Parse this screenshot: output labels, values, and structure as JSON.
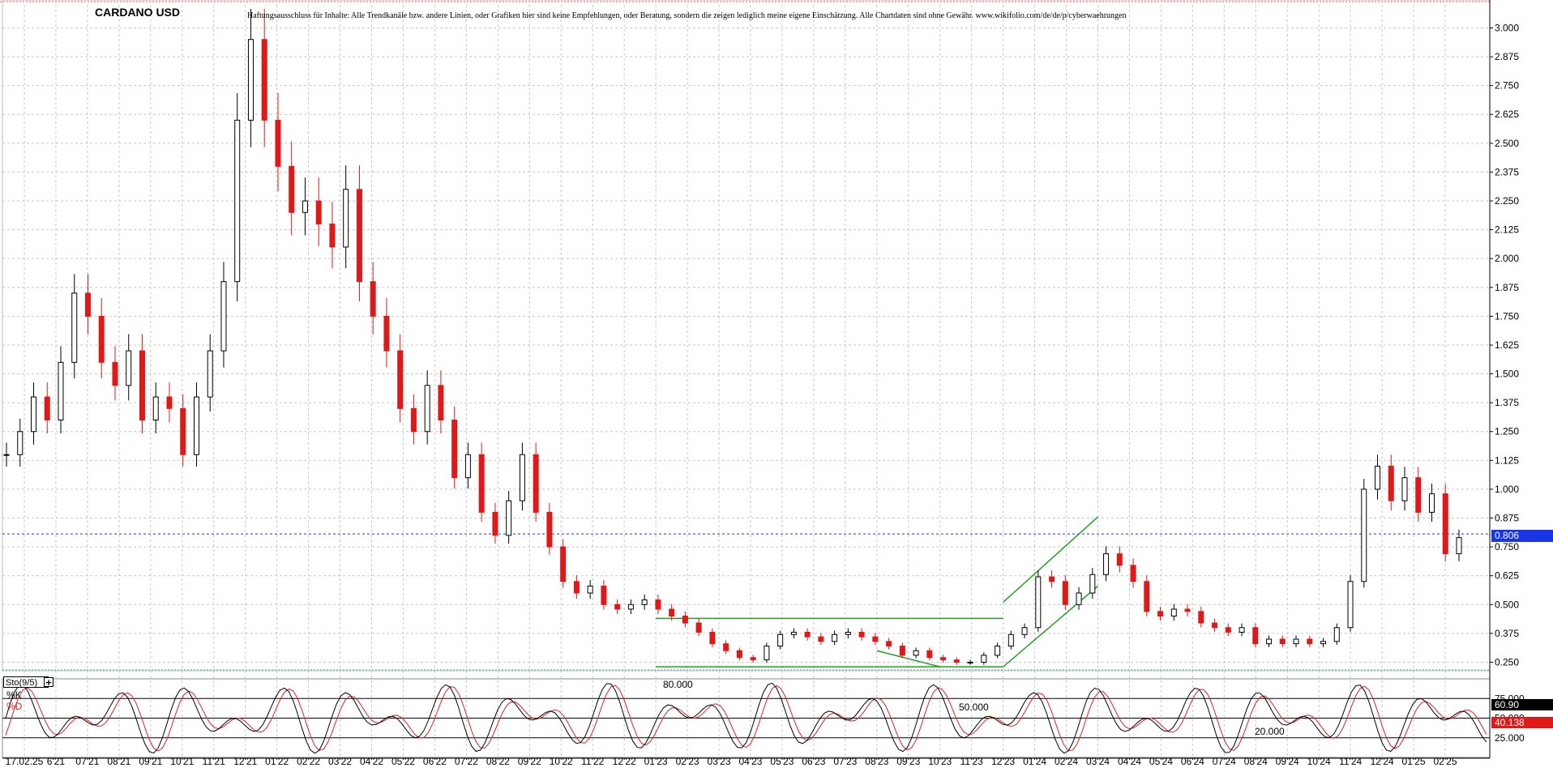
{
  "chart_data": [
    {
      "type": "candlestick",
      "title": "CARDANO USD",
      "disclaimer": "Haftungsausschluss für Inhalte: Alle Trendkanäle bzw. andere Linien, oder Grafiken hier sind keine Empfehlungen, oder Beratung, sondern die zeigen lediglich meine eigene Einschätzung. Alle Chartdaten sind ohne Gewähr. www.wikifolio.com/de/de/p/cyberwaehrungen",
      "ylim": [
        0.22,
        3.1
      ],
      "yticks": [
        "3.000",
        "2.875",
        "2.750",
        "2.625",
        "2.500",
        "2.375",
        "2.250",
        "2.125",
        "2.000",
        "1.875",
        "1.750",
        "1.625",
        "1.500",
        "1.375",
        "1.250",
        "1.125",
        "1.000",
        "0.875",
        "0.750",
        "0.625",
        "0.500",
        "0.375",
        "0.250"
      ],
      "xticks": [
        "17.02.25",
        "6'21",
        "07'21",
        "08'21",
        "09'21",
        "10'21",
        "11'21",
        "12'21",
        "01'22",
        "02'22",
        "03'22",
        "04'22",
        "05'22",
        "06'22",
        "07'22",
        "08'22",
        "09'22",
        "10'22",
        "11'22",
        "12'22",
        "01'23",
        "02'23",
        "03'23",
        "04'23",
        "05'23",
        "06'23",
        "07'23",
        "08'23",
        "09'23",
        "10'23",
        "11'23",
        "12'23",
        "01'24",
        "02'24",
        "03'24",
        "04'24",
        "05'24",
        "06'24",
        "07'24",
        "08'24",
        "09'24",
        "10'24",
        "11'24",
        "12'24",
        "01'25",
        "02'25"
      ],
      "grid": true,
      "series": [
        {
          "values": [
            1.15,
            1.25,
            1.4,
            1.3,
            1.55,
            1.85,
            1.75,
            1.55,
            1.45,
            1.6,
            1.3,
            1.4,
            1.35,
            1.15,
            1.4,
            1.6,
            1.9,
            2.6,
            2.95,
            2.6,
            2.4,
            2.2,
            2.25,
            2.15,
            2.05,
            2.3,
            1.9,
            1.75,
            1.6,
            1.35,
            1.25,
            1.45,
            1.3,
            1.05,
            1.15,
            0.9,
            0.8,
            0.95,
            1.15,
            0.9,
            0.75,
            0.6,
            0.55,
            0.58,
            0.5,
            0.48,
            0.5,
            0.52,
            0.48,
            0.45,
            0.42,
            0.38,
            0.33,
            0.3,
            0.27,
            0.26,
            0.32,
            0.37,
            0.38,
            0.36,
            0.34,
            0.37,
            0.38,
            0.36,
            0.34,
            0.32,
            0.28,
            0.3,
            0.27,
            0.26,
            0.25,
            0.25,
            0.28,
            0.32,
            0.37,
            0.4,
            0.62,
            0.6,
            0.5,
            0.55,
            0.63,
            0.72,
            0.67,
            0.6,
            0.47,
            0.45,
            0.48,
            0.47,
            0.42,
            0.4,
            0.38,
            0.4,
            0.33,
            0.35,
            0.33,
            0.35,
            0.33,
            0.34,
            0.4,
            0.6,
            1.0,
            1.1,
            0.95,
            1.05,
            0.9,
            0.98,
            0.72,
            0.79
          ]
        }
      ],
      "reference_line": {
        "value": 0.806,
        "label": "0.806",
        "color": "#1a35e6"
      },
      "annotations": [
        "80.000",
        "50.000",
        "20.000"
      ],
      "trendlines": [
        {
          "type": "horizontal-channel",
          "color": "#22a022",
          "from": "01'23",
          "to": "12'23",
          "upper": 0.44,
          "lower": 0.23
        },
        {
          "type": "rising-channel",
          "color": "#22a022",
          "from": "12'23",
          "to": "03'24",
          "upper": [
            0.51,
            0.88
          ],
          "lower": [
            0.23,
            0.58
          ]
        },
        {
          "type": "falling-line",
          "color": "#22a022",
          "from": "08'23",
          "to": "10'23",
          "values": [
            0.3,
            0.23
          ]
        }
      ]
    },
    {
      "type": "line",
      "title": "Sto(9/5)",
      "ylim": [
        0,
        100
      ],
      "yticks": [
        "75.000",
        "50.000",
        "25.000"
      ],
      "series": [
        {
          "name": "%K",
          "color": "#000000",
          "last_value": "60.90"
        },
        {
          "name": "%D",
          "color": "#e02020",
          "last_value": "40.138"
        }
      ]
    }
  ]
}
